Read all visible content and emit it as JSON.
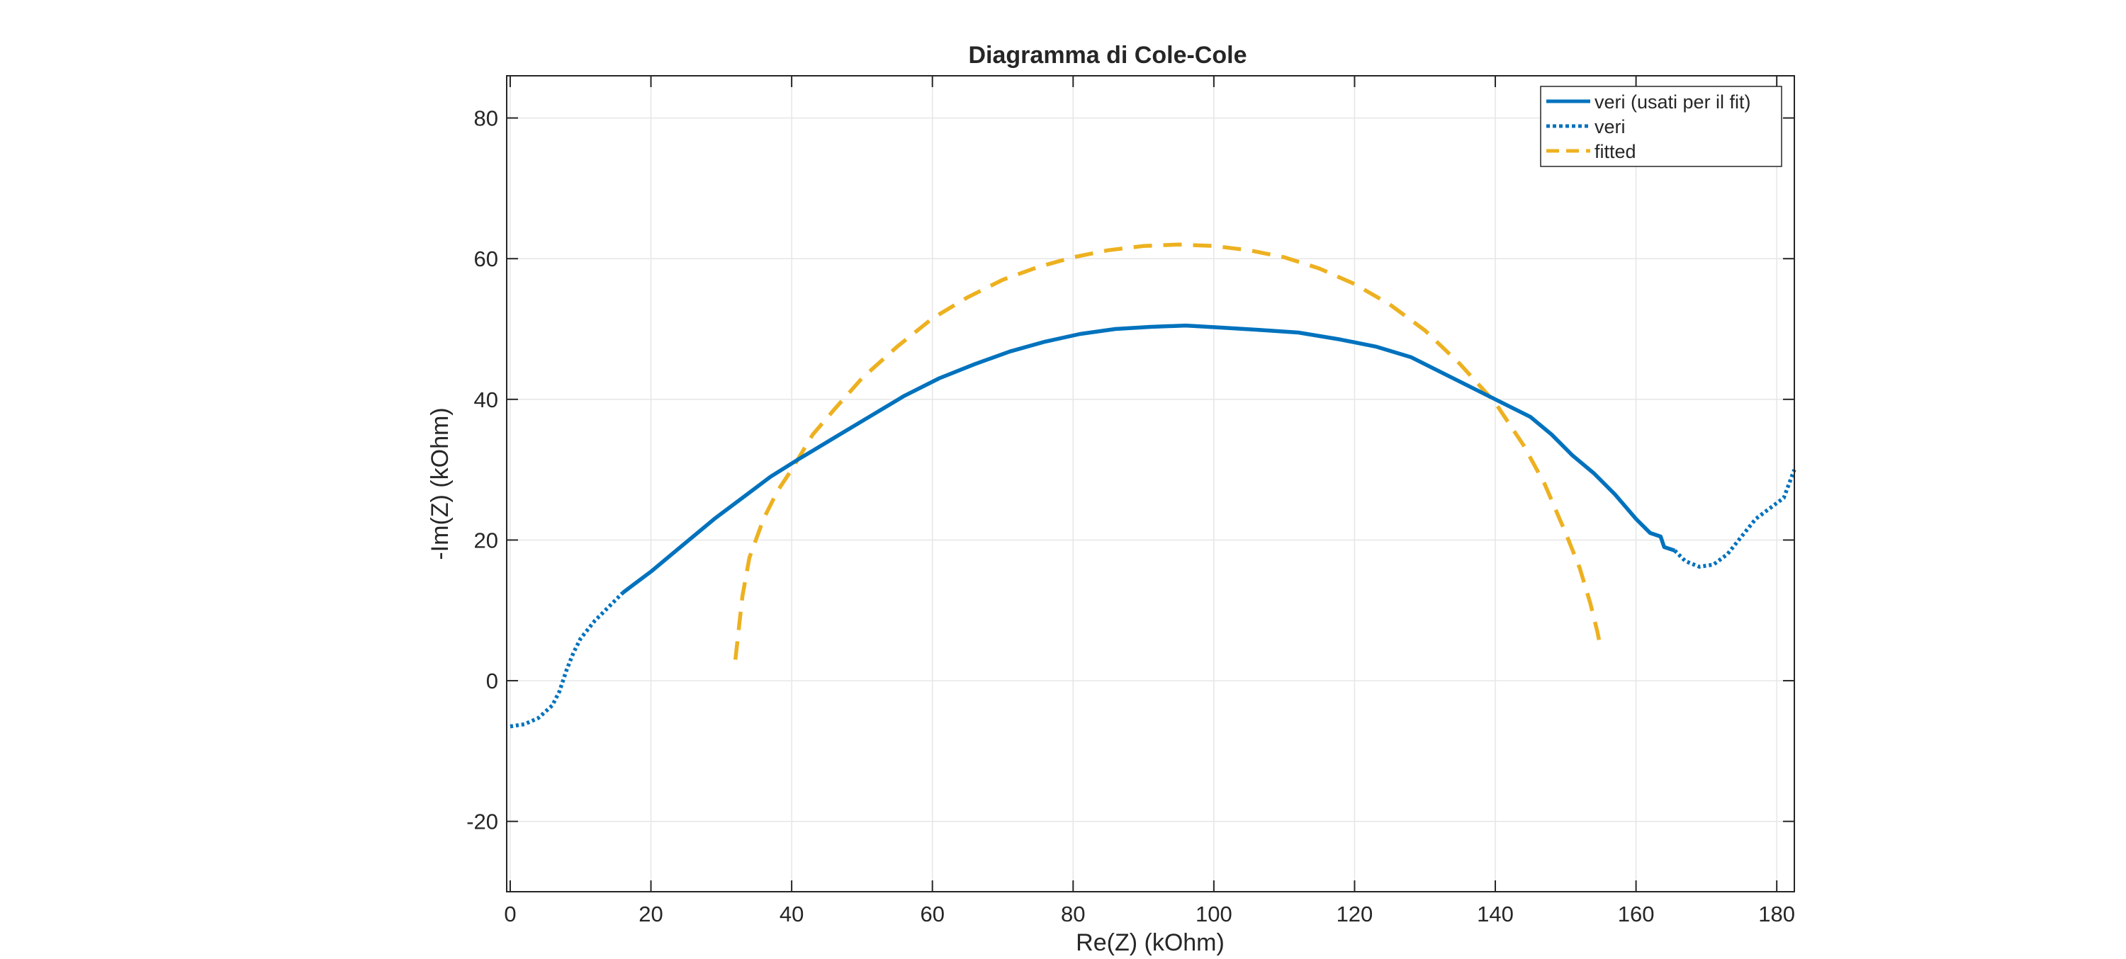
{
  "colors": {
    "veri": "#0072BD",
    "fitted": "#EDB120",
    "axis": "#262626",
    "grid": "#e6e6e6",
    "legend_border": "#262626"
  },
  "chart_data": {
    "type": "line",
    "title": "Diagramma di Cole-Cole",
    "xlabel": "Re(Z) (kOhm)",
    "ylabel": "-Im(Z) (kOhm)",
    "xlim": [
      -0.5,
      182.5
    ],
    "ylim": [
      -30,
      86
    ],
    "xticks": [
      0,
      20,
      40,
      60,
      80,
      100,
      120,
      140,
      160,
      180
    ],
    "yticks": [
      -20,
      0,
      20,
      40,
      60,
      80
    ],
    "xtick_labels": [
      "0",
      "20",
      "40",
      "60",
      "80",
      "100",
      "120",
      "140",
      "160",
      "180"
    ],
    "ytick_labels": [
      "-20",
      "0",
      "20",
      "40",
      "60",
      "80"
    ],
    "grid": true,
    "legend_position": "top-right",
    "series": [
      {
        "name": "veri (usati per il fit)",
        "style": "solid",
        "color": "#0072BD",
        "x": [
          16,
          20,
          23,
          26,
          29,
          33,
          37,
          41,
          46,
          51,
          56,
          61,
          66,
          71,
          76,
          81,
          86,
          91,
          96,
          101,
          106,
          112,
          118,
          123,
          128,
          133,
          138,
          142,
          145,
          148,
          151,
          154,
          157,
          160,
          162,
          163.5,
          164,
          165.5
        ],
        "y": [
          12.5,
          15.5,
          18,
          20.5,
          23,
          26,
          29,
          31.5,
          34.5,
          37.5,
          40.5,
          43,
          45,
          46.8,
          48.2,
          49.3,
          50,
          50.3,
          50.5,
          50.2,
          49.9,
          49.5,
          48.5,
          47.5,
          46,
          43.5,
          41,
          39,
          37.5,
          35,
          32,
          29.5,
          26.5,
          23,
          21,
          20.5,
          19,
          18.5
        ]
      },
      {
        "name": "veri",
        "style": "dotted",
        "color": "#0072BD",
        "segments": [
          {
            "x": [
              0,
              2,
              4,
              6,
              7,
              8,
              9,
              10,
              12,
              14,
              16
            ],
            "y": [
              -6.5,
              -6.2,
              -5.3,
              -3.5,
              -1.5,
              1.5,
              4,
              6,
              8.5,
              10.5,
              12.5
            ]
          },
          {
            "x": [
              165.5,
              167,
              169,
              171,
              173,
              175,
              177,
              179,
              181,
              182.5
            ],
            "y": [
              18.5,
              17,
              16.2,
              16.5,
              18,
              20.5,
              23,
              24.5,
              26,
              30
            ]
          }
        ]
      },
      {
        "name": "fitted",
        "style": "dashed",
        "color": "#EDB120",
        "x": [
          32,
          33,
          34,
          36,
          38,
          40,
          43,
          46,
          50,
          55,
          60,
          65,
          70,
          75,
          80,
          85,
          90,
          95,
          100,
          105,
          110,
          115,
          120,
          125,
          130,
          135,
          140,
          144,
          147,
          150,
          152,
          153.5,
          154.5,
          155
        ],
        "y": [
          3,
          12,
          17.5,
          23,
          27,
          30,
          35,
          38.5,
          43,
          47.5,
          51.5,
          54.5,
          57,
          58.8,
          60.2,
          61.2,
          61.8,
          62,
          61.8,
          61.2,
          60.2,
          58.6,
          56.4,
          53.5,
          49.8,
          45,
          39.5,
          33.5,
          28,
          21,
          16,
          11,
          7,
          4.5
        ]
      }
    ]
  }
}
